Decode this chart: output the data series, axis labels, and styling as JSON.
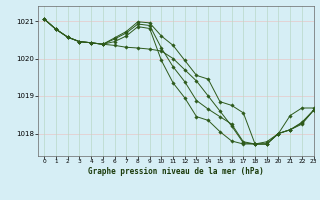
{
  "title": "Graphe pression niveau de la mer (hPa)",
  "bg_color": "#d6eef5",
  "grid_color_h": "#e8c8c8",
  "grid_color_v": "#b8d8c8",
  "line_color": "#2d5a1b",
  "xlim": [
    -0.5,
    23
  ],
  "ylim": [
    1017.4,
    1021.4
  ],
  "yticks": [
    1018,
    1019,
    1020,
    1021
  ],
  "xticks": [
    0,
    1,
    2,
    3,
    4,
    5,
    6,
    7,
    8,
    9,
    10,
    11,
    12,
    13,
    14,
    15,
    16,
    17,
    18,
    19,
    20,
    21,
    22,
    23
  ],
  "series": [
    [
      1021.05,
      1020.78,
      1020.57,
      1020.45,
      1020.42,
      1020.38,
      1020.35,
      1020.3,
      1020.28,
      1020.25,
      1020.2,
      1020.0,
      1019.7,
      1019.4,
      1019.0,
      1018.6,
      1018.2,
      1017.75,
      1017.72,
      1017.78,
      1018.0,
      1018.48,
      1018.68,
      1018.68
    ],
    [
      1021.05,
      1020.78,
      1020.57,
      1020.45,
      1020.42,
      1020.38,
      1020.55,
      1020.72,
      1020.98,
      1020.95,
      1020.6,
      1020.35,
      1019.95,
      1019.55,
      1019.45,
      1018.85,
      1018.75,
      1018.55,
      1017.72,
      1017.72,
      1018.0,
      1018.1,
      1018.3,
      1018.62
    ],
    [
      1021.05,
      1020.78,
      1020.57,
      1020.45,
      1020.42,
      1020.38,
      1020.52,
      1020.68,
      1020.92,
      1020.88,
      1020.28,
      1019.78,
      1019.38,
      1018.88,
      1018.65,
      1018.45,
      1018.25,
      1017.78,
      1017.72,
      1017.72,
      1018.0,
      1018.1,
      1018.28,
      1018.62
    ],
    [
      1021.05,
      1020.78,
      1020.57,
      1020.45,
      1020.42,
      1020.38,
      1020.45,
      1020.6,
      1020.85,
      1020.8,
      1019.95,
      1019.35,
      1018.95,
      1018.45,
      1018.35,
      1018.05,
      1017.8,
      1017.72,
      1017.72,
      1017.72,
      1018.0,
      1018.1,
      1018.25,
      1018.62
    ]
  ]
}
